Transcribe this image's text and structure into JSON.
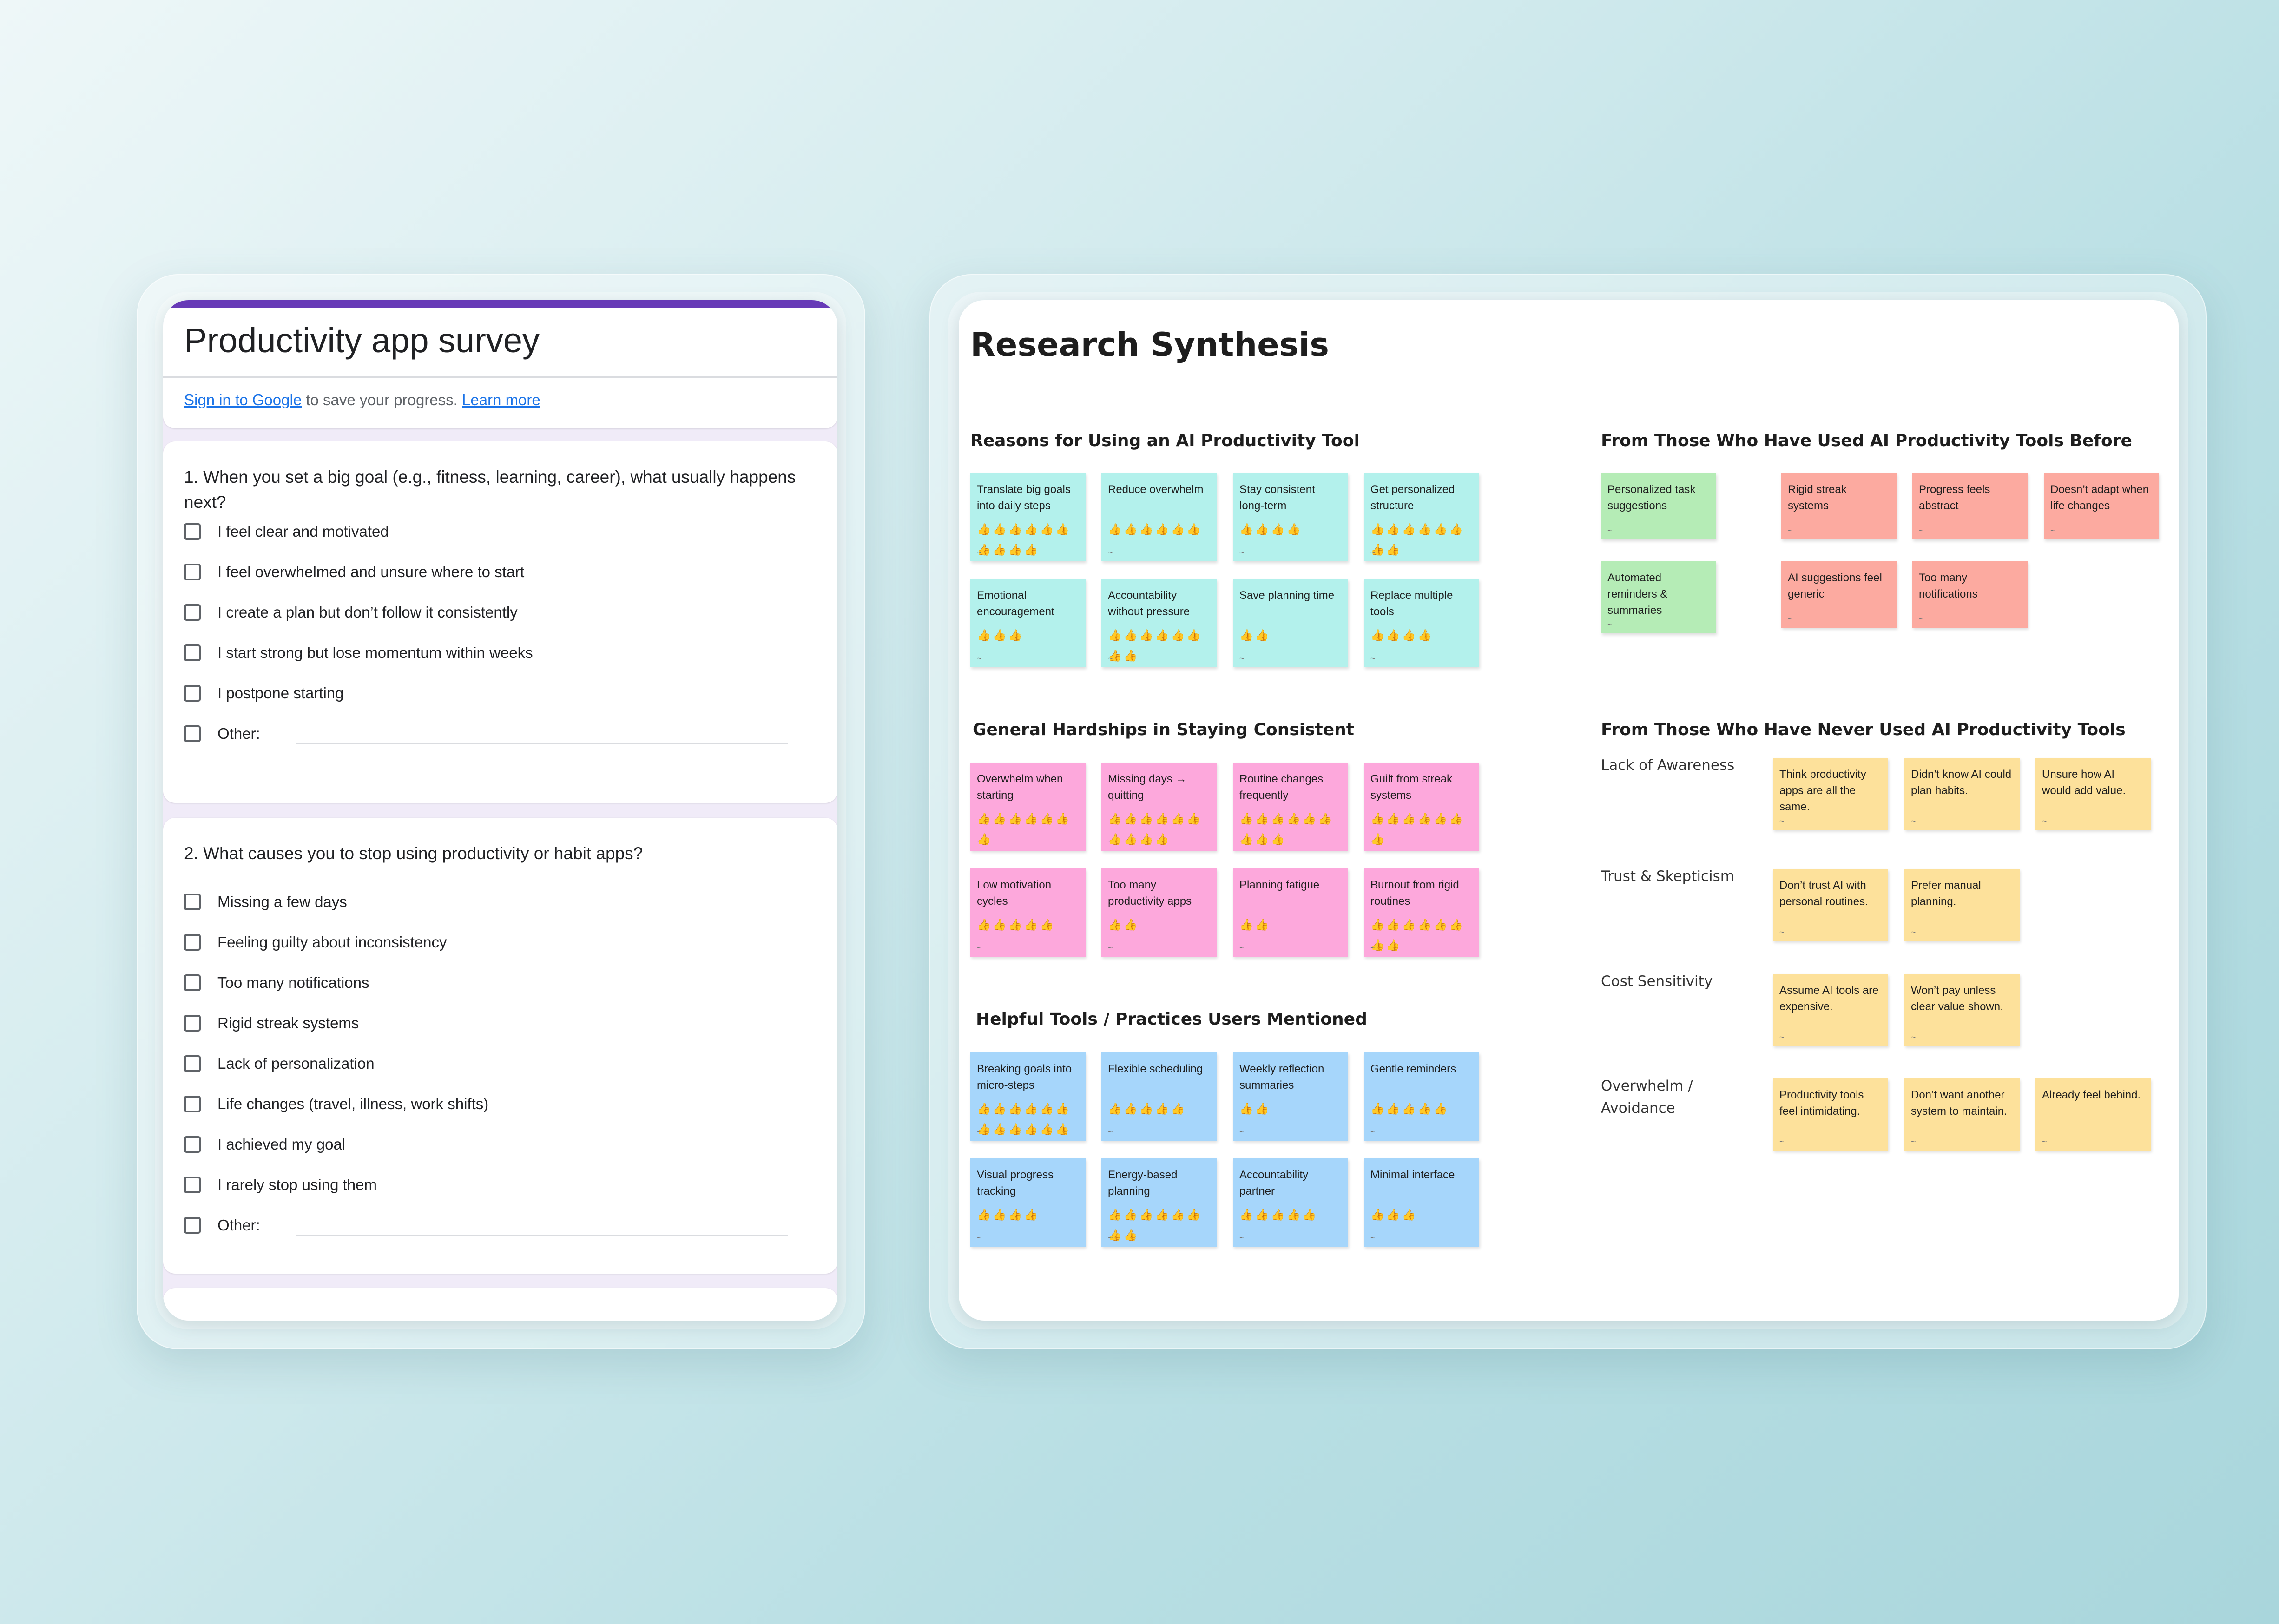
{
  "survey": {
    "title": "Productivity app survey",
    "signin_link": "Sign in to Google",
    "signin_text": " to save your progress. ",
    "learn_more": "Learn more",
    "q1": {
      "text": "1. When you set a big goal (e.g., fitness, learning, career), what usually happens next?",
      "options": [
        "I feel clear and motivated",
        "I feel overwhelmed and unsure where to start",
        "I create a plan but don’t follow it consistently",
        "I start strong but lose momentum within weeks",
        "I postpone starting",
        "Other:"
      ]
    },
    "q2": {
      "text": "2. What causes you to stop using productivity or habit apps?",
      "options": [
        "Missing a few days",
        "Feeling guilty about inconsistency",
        "Too many notifications",
        "Rigid streak systems",
        "Lack of personalization",
        "Life changes (travel, illness, work shifts)",
        "I achieved my goal",
        "I rarely stop using them",
        "Other:"
      ]
    }
  },
  "synthesis": {
    "title": "Research Synthesis",
    "reasons": {
      "title": "Reasons for Using an AI Productivity Tool",
      "notes": [
        {
          "text": "Translate big goals into daily steps",
          "votes": 10
        },
        {
          "text": "Reduce overwhelm",
          "votes": 6
        },
        {
          "text": "Stay consistent long-term",
          "votes": 4
        },
        {
          "text": "Get personalized structure",
          "votes": 8
        },
        {
          "text": "Emotional encouragement",
          "votes": 3
        },
        {
          "text": "Accountability without pressure",
          "votes": 8
        },
        {
          "text": "Save planning time",
          "votes": 2
        },
        {
          "text": "Replace multiple tools",
          "votes": 4
        }
      ]
    },
    "hardships": {
      "title": "General Hardships in Staying Consistent",
      "notes": [
        {
          "text": "Overwhelm when starting",
          "votes": 7
        },
        {
          "text": "Missing days → quitting",
          "votes": 10
        },
        {
          "text": "Routine changes frequently",
          "votes": 9
        },
        {
          "text": "Guilt from streak systems",
          "votes": 7
        },
        {
          "text": "Low motivation cycles",
          "votes": 5
        },
        {
          "text": "Too many productivity apps",
          "votes": 2
        },
        {
          "text": "Planning fatigue",
          "votes": 2
        },
        {
          "text": "Burnout from rigid routines",
          "votes": 8
        }
      ]
    },
    "helpful": {
      "title": "Helpful Tools / Practices Users Mentioned",
      "notes": [
        {
          "text": "Breaking goals into micro-steps",
          "votes": 12
        },
        {
          "text": "Flexible scheduling",
          "votes": 5
        },
        {
          "text": "Weekly reflection summaries",
          "votes": 2
        },
        {
          "text": "Gentle reminders",
          "votes": 5
        },
        {
          "text": "Visual progress tracking",
          "votes": 4
        },
        {
          "text": "Energy-based planning",
          "votes": 8
        },
        {
          "text": "Accountability partner",
          "votes": 5
        },
        {
          "text": "Minimal interface",
          "votes": 3
        }
      ]
    },
    "used": {
      "title": "From Those Who Have Used AI Productivity Tools Before",
      "positive": [
        "Personalized task suggestions",
        "Automated reminders & summaries"
      ],
      "negative": [
        "Rigid streak systems",
        "Progress feels abstract",
        "Doesn’t adapt when life changes",
        "AI suggestions feel generic",
        "Too many notifications"
      ]
    },
    "never_used": {
      "title": "From Those Who Have Never Used AI Productivity Tools",
      "rows": [
        {
          "label": "Lack of Awareness",
          "notes": [
            "Think productivity apps are all the same.",
            "Didn’t know AI could plan habits.",
            "Unsure how AI would add value."
          ]
        },
        {
          "label": "Trust & Skepticism",
          "notes": [
            "Don’t trust AI with personal routines.",
            "Prefer manual planning."
          ]
        },
        {
          "label": "Cost Sensitivity",
          "notes": [
            "Assume AI tools are expensive.",
            "Won’t pay unless clear value shown."
          ]
        },
        {
          "label": "Overwhelm / Avoidance",
          "notes": [
            "Productivity tools feel intimidating.",
            "Don’t want another system to maintain.",
            "Already feel behind."
          ]
        }
      ]
    }
  }
}
